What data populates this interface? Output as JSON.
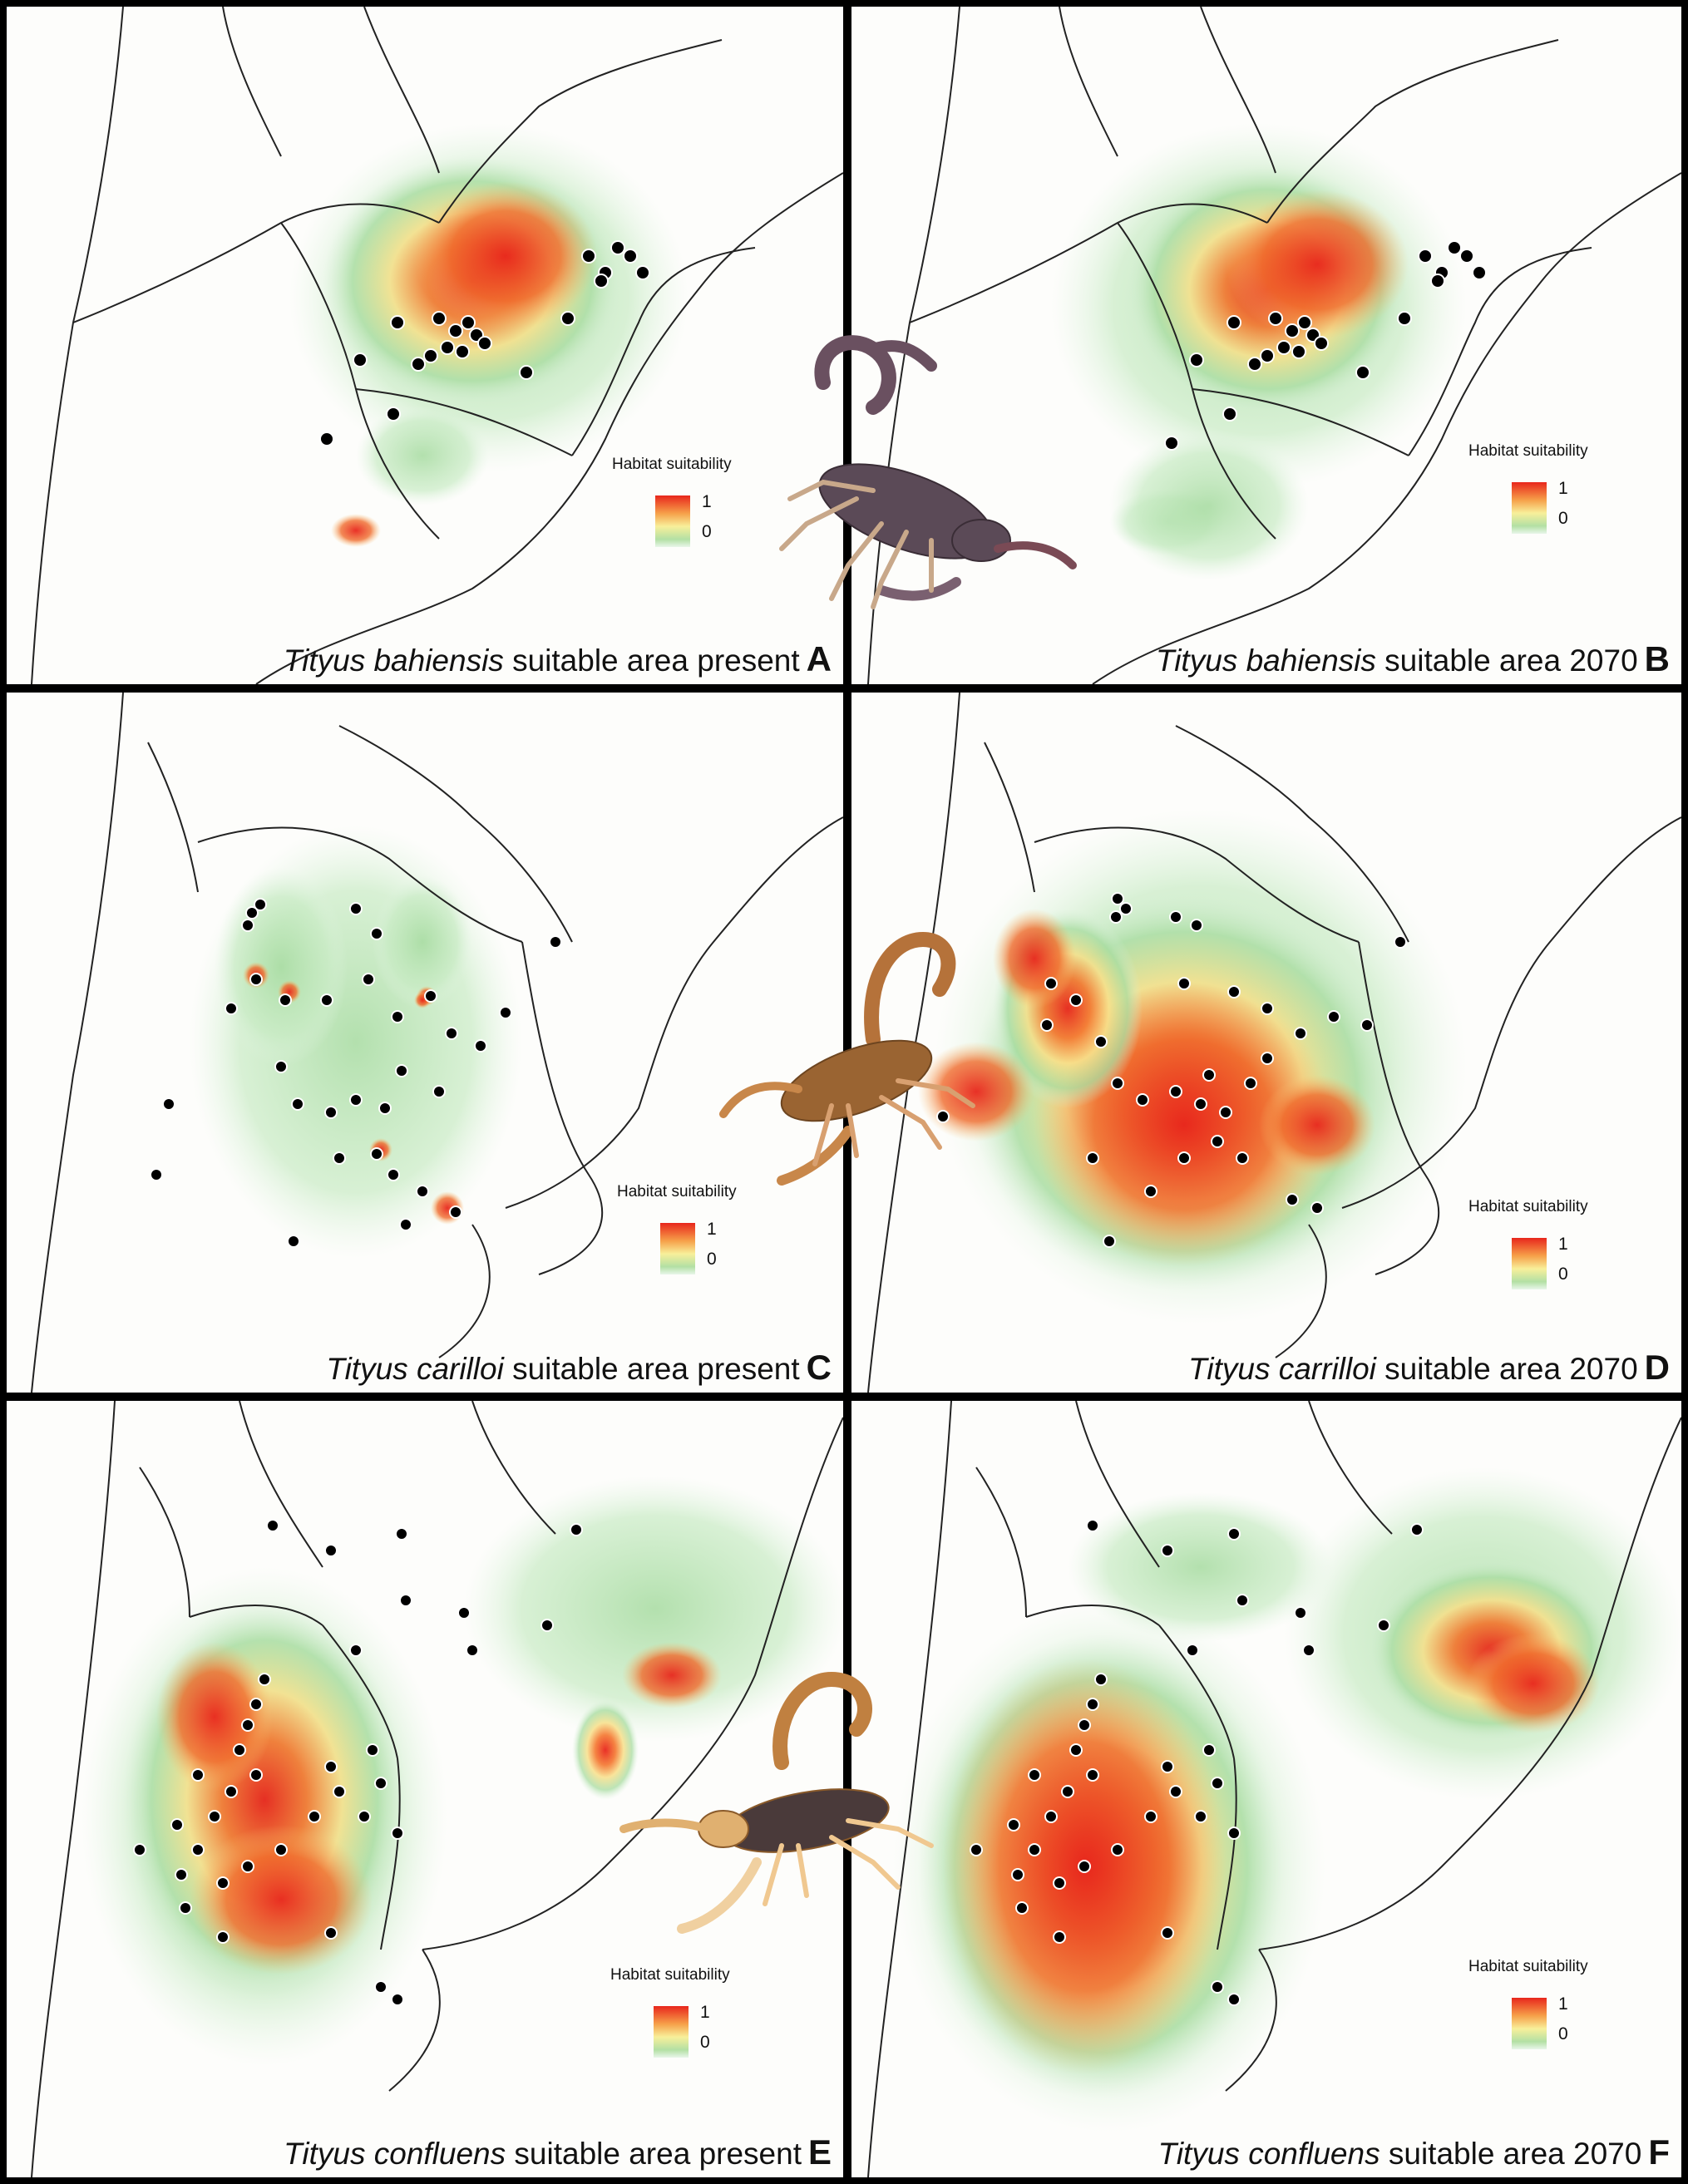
{
  "legend": {
    "title": "Habitat suitability",
    "max_label": "1",
    "min_label": "0"
  },
  "colors": {
    "high": "#e8261c",
    "mid_high": "#f6a14a",
    "mid": "#f8ef9a",
    "low": "#b3e0a4",
    "none": "#e8f6ea",
    "border": "#222222",
    "occurrence": "#000000"
  },
  "panels": [
    {
      "letter": "A",
      "species": "Tityus bahiensis",
      "suffix": " suitable area present"
    },
    {
      "letter": "B",
      "species": "Tityus bahiensis",
      "suffix": " suitable area 2070"
    },
    {
      "letter": "C",
      "species": "Tityus carilloi",
      "suffix": " suitable area present"
    },
    {
      "letter": "D",
      "species": "Tityus carrilloi",
      "suffix": " suitable area 2070"
    },
    {
      "letter": "E",
      "species": "Tityus confluens",
      "suffix": " suitable area present"
    },
    {
      "letter": "F",
      "species": "Tityus confluens",
      "suffix": " suitable area 2070"
    }
  ],
  "images": {
    "scorpion_1": "scorpion-icon",
    "scorpion_2": "scorpion-icon",
    "scorpion_3": "scorpion-icon"
  }
}
